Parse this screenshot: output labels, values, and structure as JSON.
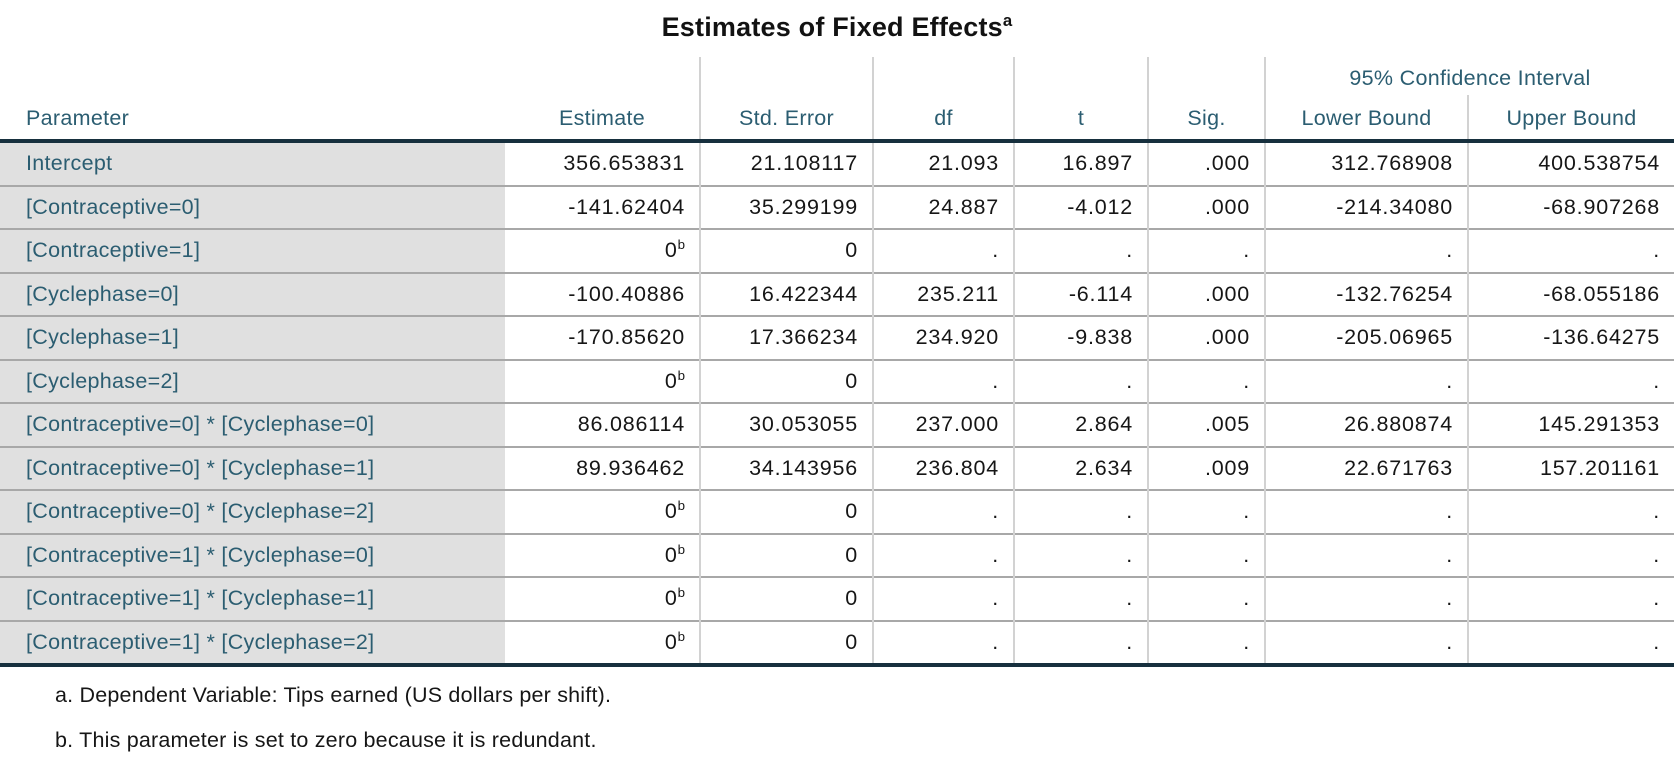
{
  "title": {
    "text": "Estimates of Fixed Effects",
    "superscript": "a"
  },
  "colors": {
    "header_text": "#2b5d71",
    "parameter_text": "#2b5d71",
    "value_text": "#161616",
    "parameter_bg": "#e0e0e0",
    "thick_border": "#17303e",
    "row_separator": "#a8a8a8",
    "column_separator": "#d2d2d2"
  },
  "table": {
    "ci_group_label": "95% Confidence Interval",
    "columns": [
      "Parameter",
      "Estimate",
      "Std. Error",
      "df",
      "t",
      "Sig.",
      "Lower Bound",
      "Upper Bound"
    ],
    "rows": [
      {
        "parameter": "Intercept",
        "estimate": "356.653831",
        "std_error": "21.108117",
        "df": "21.093",
        "t": "16.897",
        "sig": ".000",
        "lower": "312.768908",
        "upper": "400.538754"
      },
      {
        "parameter": "[Contraceptive=0]",
        "estimate": "-141.62404",
        "std_error": "35.299199",
        "df": "24.887",
        "t": "-4.012",
        "sig": ".000",
        "lower": "-214.34080",
        "upper": "-68.907268"
      },
      {
        "parameter": "[Contraceptive=1]",
        "estimate": "0",
        "estimate_sup": "b",
        "std_error": "0",
        "df": ".",
        "t": ".",
        "sig": ".",
        "lower": ".",
        "upper": "."
      },
      {
        "parameter": "[Cyclephase=0]",
        "estimate": "-100.40886",
        "std_error": "16.422344",
        "df": "235.211",
        "t": "-6.114",
        "sig": ".000",
        "lower": "-132.76254",
        "upper": "-68.055186"
      },
      {
        "parameter": "[Cyclephase=1]",
        "estimate": "-170.85620",
        "std_error": "17.366234",
        "df": "234.920",
        "t": "-9.838",
        "sig": ".000",
        "lower": "-205.06965",
        "upper": "-136.64275"
      },
      {
        "parameter": "[Cyclephase=2]",
        "estimate": "0",
        "estimate_sup": "b",
        "std_error": "0",
        "df": ".",
        "t": ".",
        "sig": ".",
        "lower": ".",
        "upper": "."
      },
      {
        "parameter": "[Contraceptive=0] * [Cyclephase=0]",
        "estimate": "86.086114",
        "std_error": "30.053055",
        "df": "237.000",
        "t": "2.864",
        "sig": ".005",
        "lower": "26.880874",
        "upper": "145.291353"
      },
      {
        "parameter": "[Contraceptive=0] * [Cyclephase=1]",
        "estimate": "89.936462",
        "std_error": "34.143956",
        "df": "236.804",
        "t": "2.634",
        "sig": ".009",
        "lower": "22.671763",
        "upper": "157.201161"
      },
      {
        "parameter": "[Contraceptive=0] * [Cyclephase=2]",
        "estimate": "0",
        "estimate_sup": "b",
        "std_error": "0",
        "df": ".",
        "t": ".",
        "sig": ".",
        "lower": ".",
        "upper": "."
      },
      {
        "parameter": "[Contraceptive=1] * [Cyclephase=0]",
        "estimate": "0",
        "estimate_sup": "b",
        "std_error": "0",
        "df": ".",
        "t": ".",
        "sig": ".",
        "lower": ".",
        "upper": "."
      },
      {
        "parameter": "[Contraceptive=1] * [Cyclephase=1]",
        "estimate": "0",
        "estimate_sup": "b",
        "std_error": "0",
        "df": ".",
        "t": ".",
        "sig": ".",
        "lower": ".",
        "upper": "."
      },
      {
        "parameter": "[Contraceptive=1] * [Cyclephase=2]",
        "estimate": "0",
        "estimate_sup": "b",
        "std_error": "0",
        "df": ".",
        "t": ".",
        "sig": ".",
        "lower": ".",
        "upper": "."
      }
    ]
  },
  "footnotes": [
    "a. Dependent Variable: Tips earned (US dollars per shift).",
    "b. This parameter is set to zero because it is redundant."
  ]
}
